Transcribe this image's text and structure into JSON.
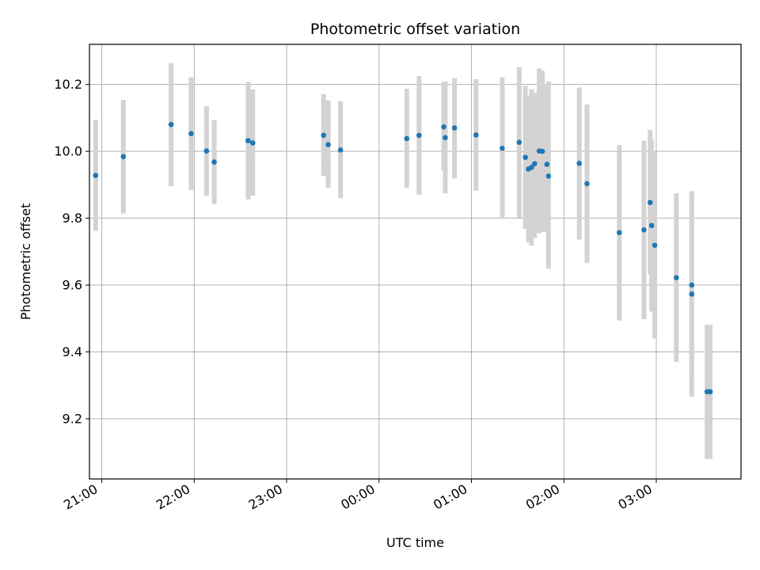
{
  "chart_data": {
    "type": "scatter",
    "title": "Photometric offset variation",
    "xlabel": "UTC time",
    "ylabel": "Photometric offset",
    "x_axis_kind": "time",
    "x_ticks": [
      "21:00",
      "22:00",
      "23:00",
      "00:00",
      "01:00",
      "02:00",
      "03:00"
    ],
    "y_ticks": [
      "9.2",
      "9.4",
      "9.6",
      "9.8",
      "10.0",
      "10.2"
    ],
    "xlim": [
      "20:52",
      "03:55"
    ],
    "ylim": [
      9.02,
      10.32
    ],
    "grid": true,
    "marker_color": "#1f77b4",
    "errorbar_color": "#d3d3d3",
    "points": [
      {
        "t": "20:56",
        "y": 9.928,
        "lo": 9.762,
        "hi": 10.094
      },
      {
        "t": "21:14",
        "y": 9.984,
        "lo": 9.814,
        "hi": 10.154
      },
      {
        "t": "21:45",
        "y": 10.08,
        "lo": 9.896,
        "hi": 10.264
      },
      {
        "t": "21:58",
        "y": 10.053,
        "lo": 9.885,
        "hi": 10.221
      },
      {
        "t": "22:08",
        "y": 10.001,
        "lo": 9.867,
        "hi": 10.135
      },
      {
        "t": "22:13",
        "y": 9.968,
        "lo": 9.842,
        "hi": 10.094
      },
      {
        "t": "22:35",
        "y": 10.032,
        "lo": 9.856,
        "hi": 10.208
      },
      {
        "t": "22:38",
        "y": 10.025,
        "lo": 9.867,
        "hi": 10.185
      },
      {
        "t": "23:24",
        "y": 10.048,
        "lo": 9.927,
        "hi": 10.171
      },
      {
        "t": "23:27",
        "y": 10.02,
        "lo": 9.891,
        "hi": 10.152
      },
      {
        "t": "23:35",
        "y": 10.004,
        "lo": 9.86,
        "hi": 10.15
      },
      {
        "t": "00:18",
        "y": 10.038,
        "lo": 9.891,
        "hi": 10.187
      },
      {
        "t": "00:26",
        "y": 10.048,
        "lo": 9.87,
        "hi": 10.225
      },
      {
        "t": "00:42",
        "y": 10.073,
        "lo": 9.943,
        "hi": 10.207
      },
      {
        "t": "00:43",
        "y": 10.041,
        "lo": 9.874,
        "hi": 10.209
      },
      {
        "t": "00:49",
        "y": 10.07,
        "lo": 9.919,
        "hi": 10.219
      },
      {
        "t": "01:03",
        "y": 10.049,
        "lo": 9.882,
        "hi": 10.216
      },
      {
        "t": "01:20",
        "y": 10.009,
        "lo": 9.798,
        "hi": 10.221
      },
      {
        "t": "01:31",
        "y": 10.027,
        "lo": 9.801,
        "hi": 10.252
      },
      {
        "t": "01:35",
        "y": 9.982,
        "lo": 9.768,
        "hi": 10.196
      },
      {
        "t": "01:37",
        "y": 9.947,
        "lo": 9.728,
        "hi": 10.166
      },
      {
        "t": "01:39",
        "y": 9.952,
        "lo": 9.718,
        "hi": 10.186
      },
      {
        "t": "01:41",
        "y": 9.963,
        "lo": 9.741,
        "hi": 10.175
      },
      {
        "t": "01:44",
        "y": 10.001,
        "lo": 9.755,
        "hi": 10.248
      },
      {
        "t": "01:46",
        "y": 10.0,
        "lo": 9.759,
        "hi": 10.241
      },
      {
        "t": "01:49",
        "y": 9.961,
        "lo": 9.76,
        "hi": 10.201
      },
      {
        "t": "01:50",
        "y": 9.926,
        "lo": 9.649,
        "hi": 10.209
      },
      {
        "t": "02:10",
        "y": 9.964,
        "lo": 9.736,
        "hi": 10.191
      },
      {
        "t": "02:15",
        "y": 9.903,
        "lo": 9.666,
        "hi": 10.14
      },
      {
        "t": "02:36",
        "y": 9.757,
        "lo": 9.494,
        "hi": 10.019
      },
      {
        "t": "02:52",
        "y": 9.765,
        "lo": 9.498,
        "hi": 10.032
      },
      {
        "t": "02:56",
        "y": 9.847,
        "lo": 9.631,
        "hi": 10.064
      },
      {
        "t": "02:57",
        "y": 9.778,
        "lo": 9.521,
        "hi": 10.035
      },
      {
        "t": "02:59",
        "y": 9.719,
        "lo": 9.44,
        "hi": 9.998
      },
      {
        "t": "03:13",
        "y": 9.622,
        "lo": 9.37,
        "hi": 9.874
      },
      {
        "t": "03:23",
        "y": 9.6,
        "lo": 9.327,
        "hi": 9.874
      },
      {
        "t": "03:23",
        "y": 9.573,
        "lo": 9.266,
        "hi": 9.881
      },
      {
        "t": "03:33",
        "y": 9.281,
        "lo": 9.08,
        "hi": 9.481
      },
      {
        "t": "03:35",
        "y": 9.281,
        "lo": 9.08,
        "hi": 9.481
      }
    ]
  }
}
